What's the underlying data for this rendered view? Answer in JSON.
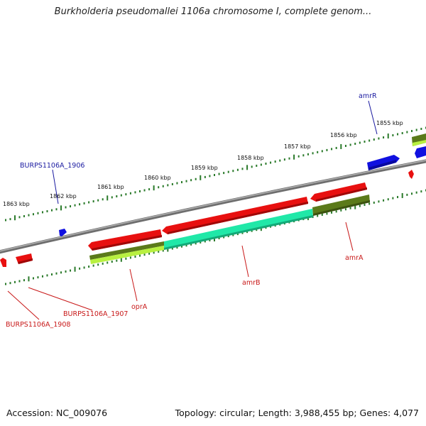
{
  "title": "Burkholderia pseudomallei 1106a chromosome I, complete genom...",
  "footer": {
    "accession": "Accession: NC_009076",
    "topology": "Topology: circular; Length: 3,988,455 bp; Genes: 4,077"
  },
  "kbp_ticks": [
    "1863 kbp",
    "1862 kbp",
    "1861 kbp",
    "1860 kbp",
    "1859 kbp",
    "1858 kbp",
    "1857 kbp",
    "1856 kbp",
    "1855 kbp"
  ],
  "gene_labels": {
    "amrR": "amrR",
    "burps1906": "BURPS1106A_1906",
    "amrA": "amrA",
    "amrB": "amrB",
    "oprA": "oprA",
    "burps1907": "BURPS1106A_1907",
    "burps1908": "BURPS1106A_1908"
  },
  "colors": {
    "forward_strand_gene": "#1010e0",
    "reverse_strand_gene": "#e81010",
    "forward_label": "#1a1aa0",
    "reverse_label": "#c81818",
    "cds_green": "#5b7a1a",
    "cds_teal": "#20e8a8",
    "cds_yellow_green": "#b8f040",
    "backbone": "#808080",
    "tick": "#2a7a2a"
  }
}
